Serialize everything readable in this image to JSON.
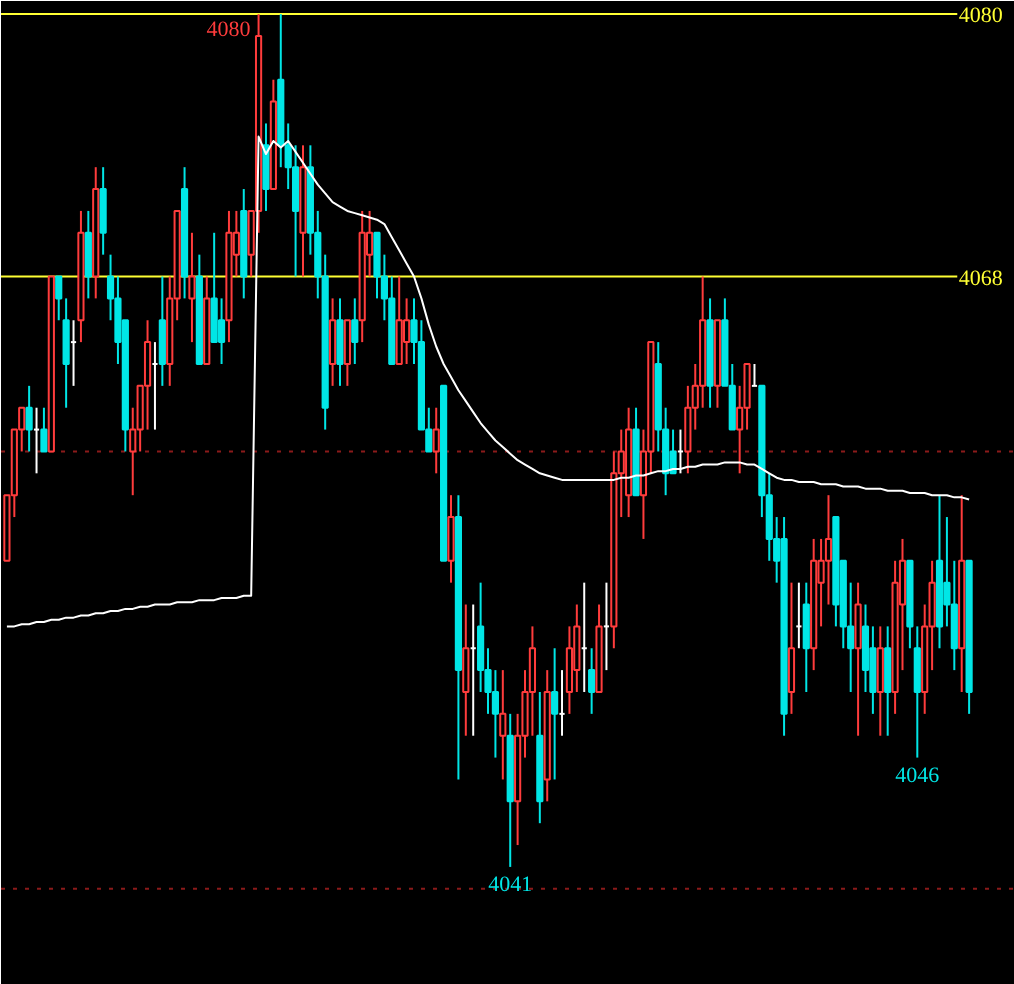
{
  "chart_data": {
    "type": "candlestick",
    "categories": [
      null,
      null,
      null,
      null,
      null,
      null,
      null,
      null,
      null,
      null,
      null,
      null,
      null,
      null,
      null,
      null,
      null,
      null,
      null,
      null,
      null,
      null,
      null,
      null,
      null,
      null,
      null,
      null,
      null,
      null,
      null,
      null,
      null,
      null,
      null,
      null,
      null,
      null,
      null,
      null,
      null,
      null,
      null,
      null,
      null,
      null,
      null,
      null,
      null,
      null,
      null,
      null,
      null,
      null,
      null,
      null,
      null,
      null,
      null,
      null,
      null,
      null,
      null,
      null,
      null,
      null,
      null,
      null,
      null,
      null,
      null,
      null,
      null,
      null,
      null,
      null,
      null,
      null,
      null,
      null,
      null,
      null,
      null,
      null,
      null,
      null,
      null,
      null,
      null,
      null,
      null,
      null,
      null,
      null,
      null,
      null,
      null,
      null,
      null,
      null,
      null,
      null,
      null,
      null,
      null,
      null,
      null,
      null,
      null,
      null,
      null,
      null,
      null,
      null,
      null,
      null,
      null,
      null,
      null,
      null,
      null,
      null,
      null,
      null,
      null,
      null,
      null,
      null,
      null,
      null,
      null
    ],
    "ohlc": [
      [
        4055,
        4058,
        4055,
        4058
      ],
      [
        4058,
        4061,
        4057,
        4061
      ],
      [
        4061,
        4062,
        4060,
        4062
      ],
      [
        4062,
        4063,
        4060,
        4061
      ],
      [
        4061,
        4062,
        4059,
        4061
      ],
      [
        4061,
        4062,
        4060,
        4060
      ],
      [
        4060,
        4068,
        4060,
        4068
      ],
      [
        4068,
        4068,
        4066,
        4067
      ],
      [
        4066,
        4067,
        4062,
        4064
      ],
      [
        4065,
        4066,
        4063,
        4065
      ],
      [
        4066,
        4071,
        4065,
        4070
      ],
      [
        4070,
        4071,
        4067,
        4068
      ],
      [
        4068,
        4073,
        4067,
        4072
      ],
      [
        4072,
        4073,
        4069,
        4070
      ],
      [
        4068,
        4069,
        4066,
        4067
      ],
      [
        4067,
        4068,
        4064,
        4065
      ],
      [
        4066,
        4066,
        4060,
        4061
      ],
      [
        4060,
        4062,
        4058,
        4061
      ],
      [
        4061,
        4063,
        4060,
        4063
      ],
      [
        4063,
        4066,
        4061,
        4065
      ],
      [
        4064,
        4065,
        4061,
        4064
      ],
      [
        4066,
        4068,
        4063,
        4064
      ],
      [
        4064,
        4068,
        4063,
        4067
      ],
      [
        4067,
        4071,
        4066,
        4071
      ],
      [
        4072,
        4073,
        4067,
        4068
      ],
      [
        4067,
        4070,
        4065,
        4068
      ],
      [
        4068,
        4069,
        4064,
        4064
      ],
      [
        4064,
        4068,
        4064,
        4067
      ],
      [
        4067,
        4070,
        4065,
        4065
      ],
      [
        4066,
        4067,
        4064,
        4065
      ],
      [
        4066,
        4071,
        4065,
        4070
      ],
      [
        4069,
        4071,
        4068,
        4070
      ],
      [
        4071,
        4072,
        4067,
        4068
      ],
      [
        4069,
        4071,
        4068,
        4071
      ],
      [
        4071,
        4080,
        4070,
        4079
      ],
      [
        4074,
        4075,
        4071,
        4072
      ],
      [
        4072,
        4077,
        4072,
        4076
      ],
      [
        4077,
        4080,
        4073,
        4074
      ],
      [
        4074,
        4075,
        4072,
        4073
      ],
      [
        4073,
        4074,
        4068,
        4071
      ],
      [
        4070,
        4074,
        4068,
        4073
      ],
      [
        4073,
        4074,
        4069,
        4070
      ],
      [
        4070,
        4071,
        4067,
        4068
      ],
      [
        4068,
        4069,
        4061,
        4062
      ],
      [
        4064,
        4067,
        4063,
        4066
      ],
      [
        4066,
        4067,
        4063,
        4064
      ],
      [
        4064,
        4066,
        4063,
        4066
      ],
      [
        4066,
        4067,
        4064,
        4065
      ],
      [
        4066,
        4071,
        4065,
        4070
      ],
      [
        4069,
        4071,
        4068,
        4070
      ],
      [
        4070,
        4070,
        4067,
        4068
      ],
      [
        4068,
        4069,
        4066,
        4067
      ],
      [
        4067,
        4068,
        4064,
        4064
      ],
      [
        4064,
        4068,
        4064,
        4066
      ],
      [
        4065,
        4067,
        4064,
        4066
      ],
      [
        4066,
        4067,
        4064,
        4065
      ],
      [
        4065,
        4066,
        4061,
        4061
      ],
      [
        4061,
        4062,
        4060,
        4060
      ],
      [
        4060,
        4062,
        4059,
        4061
      ],
      [
        4063,
        4063,
        4055,
        4055
      ],
      [
        4055,
        4058,
        4054,
        4057
      ],
      [
        4057,
        4058,
        4045,
        4050
      ],
      [
        4049,
        4053,
        4047,
        4051
      ],
      [
        4051,
        4053,
        4047,
        4051
      ],
      [
        4052,
        4054,
        4049,
        4050
      ],
      [
        4050,
        4051,
        4048,
        4049
      ],
      [
        4049,
        4050,
        4046,
        4048
      ],
      [
        4047,
        4050,
        4045,
        4048
      ],
      [
        4047,
        4048,
        4041,
        4044
      ],
      [
        4044,
        4048,
        4042,
        4047
      ],
      [
        4047,
        4050,
        4046,
        4049
      ],
      [
        4049,
        4052,
        4047,
        4051
      ],
      [
        4047,
        4049,
        4043,
        4044
      ],
      [
        4045,
        4050,
        4044,
        4049
      ],
      [
        4049,
        4051,
        4045,
        4048
      ],
      [
        4048,
        4050,
        4047,
        4048
      ],
      [
        4049,
        4052,
        4048,
        4051
      ],
      [
        4050,
        4053,
        4049,
        4052
      ],
      [
        4051,
        4054,
        4049,
        4051
      ],
      [
        4050,
        4051,
        4048,
        4049
      ],
      [
        4049,
        4053,
        4049,
        4052
      ],
      [
        4052,
        4054,
        4050,
        4052
      ],
      [
        4052,
        4060,
        4051,
        4059
      ],
      [
        4059,
        4061,
        4057,
        4060
      ],
      [
        4058,
        4062,
        4057,
        4061
      ],
      [
        4061,
        4062,
        4058,
        4058
      ],
      [
        4058,
        4061,
        4056,
        4060
      ],
      [
        4060,
        4065,
        4059,
        4065
      ],
      [
        4064,
        4065,
        4060,
        4061
      ],
      [
        4061,
        4062,
        4058,
        4059
      ],
      [
        4060,
        4061,
        4059,
        4059
      ],
      [
        4060,
        4061,
        4059,
        4060
      ],
      [
        4060,
        4063,
        4059,
        4062
      ],
      [
        4062,
        4064,
        4061,
        4063
      ],
      [
        4063,
        4068,
        4062,
        4066
      ],
      [
        4066,
        4067,
        4062,
        4063
      ],
      [
        4063,
        4066,
        4062,
        4066
      ],
      [
        4066,
        4067,
        4063,
        4063
      ],
      [
        4063,
        4064,
        4061,
        4061
      ],
      [
        4061,
        4063,
        4059,
        4062
      ],
      [
        4062,
        4064,
        4061,
        4064
      ],
      [
        4063,
        4064,
        4063,
        4063
      ],
      [
        4063,
        4063,
        4057,
        4058
      ],
      [
        4058,
        4059,
        4055,
        4056
      ],
      [
        4056,
        4057,
        4054,
        4055
      ],
      [
        4056,
        4057,
        4047,
        4048
      ],
      [
        4049,
        4054,
        4048,
        4051
      ],
      [
        4052,
        4054,
        4051,
        4052
      ],
      [
        4053,
        4054,
        4049,
        4051
      ],
      [
        4051,
        4056,
        4050,
        4055
      ],
      [
        4054,
        4056,
        4052,
        4055
      ],
      [
        4055,
        4058,
        4053,
        4056
      ],
      [
        4057,
        4057,
        4052,
        4053
      ],
      [
        4055,
        4055,
        4051,
        4052
      ],
      [
        4052,
        4054,
        4049,
        4051
      ],
      [
        4051,
        4054,
        4047,
        4053
      ],
      [
        4052,
        4053,
        4049,
        4050
      ],
      [
        4051,
        4052,
        4048,
        4049
      ],
      [
        4049,
        4052,
        4047,
        4051
      ],
      [
        4051,
        4052,
        4047,
        4049
      ],
      [
        4049,
        4055,
        4048,
        4054
      ],
      [
        4053,
        4056,
        4050,
        4055
      ],
      [
        4055,
        4055,
        4051,
        4052
      ],
      [
        4051,
        4052,
        4046,
        4049
      ],
      [
        4049,
        4053,
        4048,
        4052
      ],
      [
        4052,
        4055,
        4050,
        4054
      ],
      [
        4055,
        4058,
        4051,
        4052
      ],
      [
        4054,
        4057,
        4052,
        4053
      ],
      [
        4053,
        4055,
        4050,
        4051
      ],
      [
        4051,
        4058,
        4049,
        4055
      ],
      [
        4055,
        4055,
        4048,
        4049
      ]
    ],
    "series": [
      {
        "type": "line",
        "color": "#ffffff",
        "values": [
          4052.0,
          4052.0,
          4052.1,
          4052.1,
          4052.2,
          4052.2,
          4052.3,
          4052.3,
          4052.4,
          4052.4,
          4052.5,
          4052.5,
          4052.6,
          4052.6,
          4052.7,
          4052.7,
          4052.8,
          4052.8,
          4052.9,
          4052.9,
          4053.0,
          4053.0,
          4053.0,
          4053.1,
          4053.1,
          4053.1,
          4053.2,
          4053.2,
          4053.2,
          4053.3,
          4053.3,
          4053.3,
          4053.4,
          4053.4,
          4074.4,
          4073.6,
          4074.2,
          4073.9,
          4074.2,
          4073.7,
          4073.2,
          4072.7,
          4072.2,
          4071.8,
          4071.4,
          4071.2,
          4071.0,
          4070.9,
          4070.8,
          4070.7,
          4070.6,
          4070.4,
          4069.8,
          4069.2,
          4068.6,
          4068.0,
          4067.0,
          4065.8,
          4064.8,
          4064.0,
          4063.4,
          4062.8,
          4062.3,
          4061.8,
          4061.3,
          4060.9,
          4060.5,
          4060.2,
          4059.9,
          4059.6,
          4059.4,
          4059.2,
          4059.0,
          4058.9,
          4058.8,
          4058.7,
          4058.7,
          4058.7,
          4058.7,
          4058.7,
          4058.7,
          4058.7,
          4058.7,
          4058.8,
          4058.8,
          4058.9,
          4058.9,
          4059.0,
          4059.1,
          4059.1,
          4059.2,
          4059.2,
          4059.3,
          4059.3,
          4059.4,
          4059.4,
          4059.4,
          4059.5,
          4059.5,
          4059.5,
          4059.4,
          4059.4,
          4059.2,
          4059.0,
          4058.8,
          4058.7,
          4058.7,
          4058.6,
          4058.6,
          4058.6,
          4058.5,
          4058.5,
          4058.5,
          4058.4,
          4058.4,
          4058.4,
          4058.3,
          4058.3,
          4058.3,
          4058.2,
          4058.2,
          4058.2,
          4058.1,
          4058.1,
          4058.1,
          4058.0,
          4058.0,
          4058.0,
          4057.9,
          4057.9,
          4057.8
        ]
      }
    ],
    "ylim": [
      4035.6,
      4080.6
    ],
    "tick_labels": false,
    "ref_lines": [
      {
        "axis": "y",
        "value": 4080,
        "label": "4080",
        "color": "#ffff33",
        "line_style": "solid"
      },
      {
        "axis": "y",
        "value": 4068,
        "label": "4068",
        "color": "#ffff33",
        "line_style": "solid"
      },
      {
        "axis": "y",
        "value": 4060,
        "label": null,
        "color": "#8b1a1a",
        "line_style": "dotted"
      },
      {
        "axis": "y",
        "value": 4040,
        "label": null,
        "color": "#8b1a1a",
        "line_style": "dotted"
      }
    ],
    "annotations": [
      {
        "text": "4080",
        "y": 4080
      },
      {
        "text": "4041",
        "y": 4041
      },
      {
        "text": "4046",
        "y": 4046
      }
    ]
  }
}
